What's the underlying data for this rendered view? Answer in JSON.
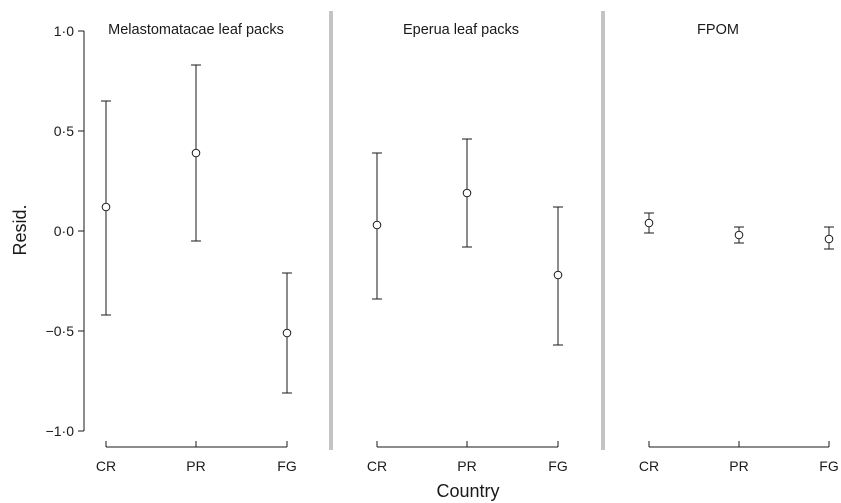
{
  "chart_data": {
    "type": "scatter",
    "xlabel": "Country",
    "ylabel": "Resid.",
    "ylim": [
      -1.0,
      1.0
    ],
    "yticks": [
      1.0,
      0.5,
      0.0,
      -0.5,
      -1.0
    ],
    "ytick_labels": [
      "1·0",
      "0·5",
      "0·0",
      "−0·5",
      "−1·0"
    ],
    "categories": [
      "CR",
      "PR",
      "FG"
    ],
    "grid": false,
    "marker": "open-circle",
    "error_bars": true,
    "panels": [
      {
        "title": "Melastomatacae leaf packs",
        "points": [
          {
            "x": "CR",
            "y": 0.12,
            "lower": -0.42,
            "upper": 0.65
          },
          {
            "x": "PR",
            "y": 0.39,
            "lower": -0.05,
            "upper": 0.83
          },
          {
            "x": "FG",
            "y": -0.51,
            "lower": -0.81,
            "upper": -0.21
          }
        ]
      },
      {
        "title": "Eperua leaf packs",
        "points": [
          {
            "x": "CR",
            "y": 0.03,
            "lower": -0.34,
            "upper": 0.39
          },
          {
            "x": "PR",
            "y": 0.19,
            "lower": -0.08,
            "upper": 0.46
          },
          {
            "x": "FG",
            "y": -0.22,
            "lower": -0.57,
            "upper": 0.12
          }
        ]
      },
      {
        "title": "FPOM",
        "points": [
          {
            "x": "CR",
            "y": 0.04,
            "lower": -0.01,
            "upper": 0.09
          },
          {
            "x": "PR",
            "y": -0.02,
            "lower": -0.06,
            "upper": 0.02
          },
          {
            "x": "FG",
            "y": -0.04,
            "lower": -0.09,
            "upper": 0.02
          }
        ]
      }
    ]
  }
}
